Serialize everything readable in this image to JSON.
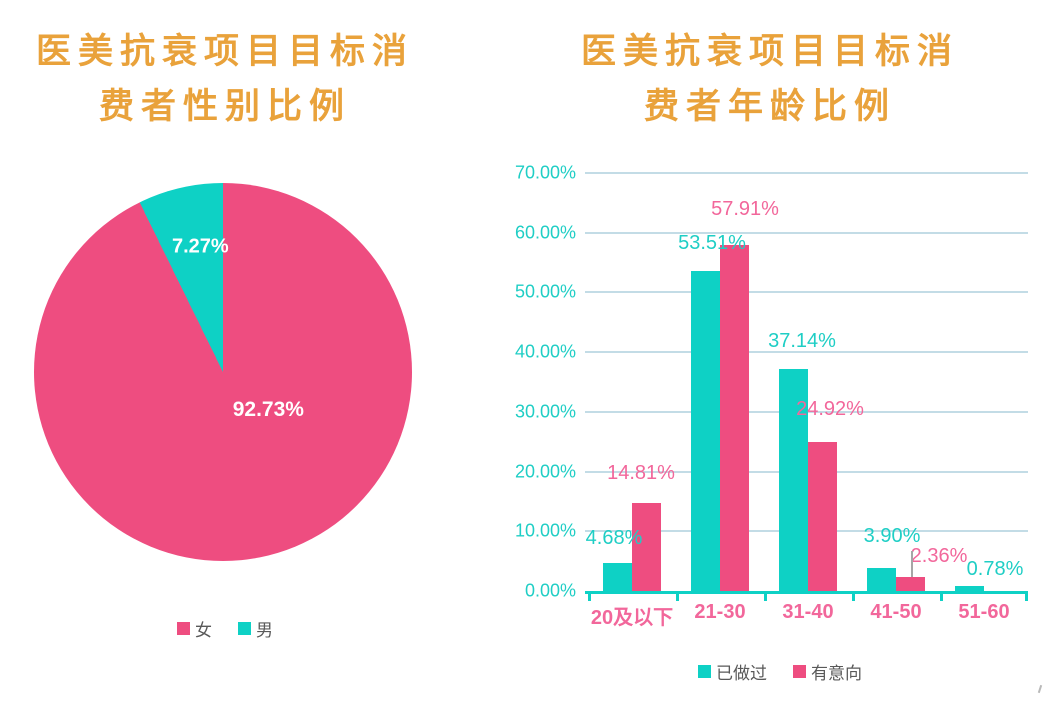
{
  "page": {
    "background": "#ffffff"
  },
  "colors": {
    "pink": "#EE4D80",
    "teal": "#0ED1C5",
    "title_gold": "#E9A23B",
    "gridline": "#C3DCE6",
    "y_axis_label": "#1FCEC5",
    "category_label": "#F2679B",
    "legend_text": "#595959",
    "leader_line": "#A6A6A6"
  },
  "panels": {
    "pie": {
      "title_lines": [
        "医美抗衰项目目标消",
        "费者性别比例"
      ]
    },
    "bar": {
      "title_lines": [
        "医美抗衰项目目标消",
        "费者年龄比例"
      ]
    }
  },
  "chart_data": [
    {
      "type": "pie",
      "title": "医美抗衰项目目标消费者性别比例",
      "labels": [
        "女",
        "男"
      ],
      "values": [
        92.73,
        7.27
      ],
      "colors": [
        "#EE4D80",
        "#0ED1C5"
      ],
      "data_labels": [
        "92.73%",
        "7.27%"
      ],
      "legend_position": "bottom",
      "start_angle_deg": 0,
      "direction": "clockwise"
    },
    {
      "type": "bar",
      "title": "医美抗衰项目目标消费者年龄比例",
      "categories": [
        "20及以下",
        "21-30",
        "31-40",
        "41-50",
        "51-60"
      ],
      "series": [
        {
          "name": "已做过",
          "color": "#0ED1C5",
          "values": [
            4.68,
            53.51,
            37.14,
            3.9,
            0.78
          ],
          "labels": [
            "4.68%",
            "53.51%",
            "37.14%",
            "3.90%",
            "0.78%"
          ]
        },
        {
          "name": "有意向",
          "color": "#EE4D80",
          "values": [
            14.81,
            57.91,
            24.92,
            2.36,
            0
          ],
          "labels": [
            "14.81%",
            "57.91%",
            "24.92%",
            "2.36%",
            ""
          ]
        }
      ],
      "ylabel": "",
      "xlabel": "",
      "ylim": [
        0,
        70
      ],
      "ytick_step": 10,
      "ytick_labels": [
        "0.00%",
        "10.00%",
        "20.00%",
        "30.00%",
        "40.00%",
        "50.00%",
        "60.00%",
        "70.00%"
      ],
      "grid": true,
      "legend_position": "bottom"
    }
  ]
}
